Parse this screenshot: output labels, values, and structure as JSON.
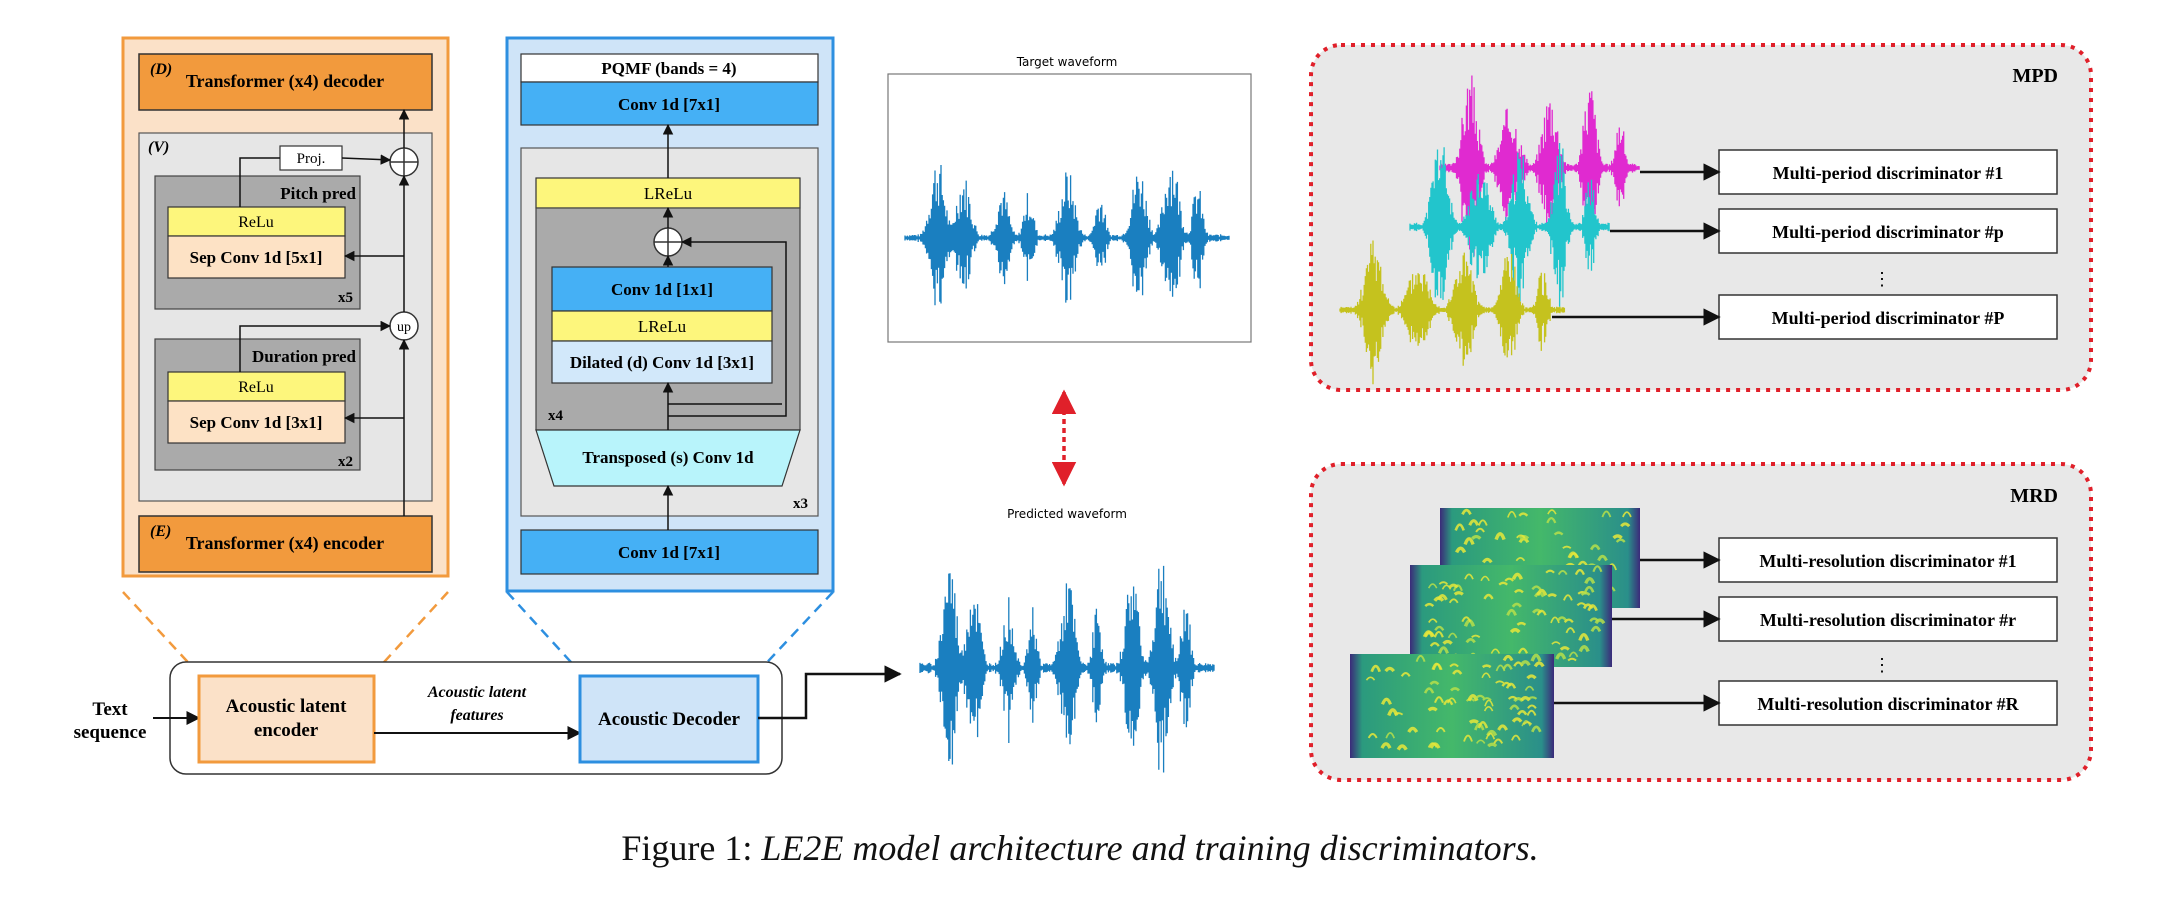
{
  "colors": {
    "orange": "#f29a3d",
    "orange_fill": "#fbe1c8",
    "blue": "#2d8fe0",
    "blue_fill": "#cfe4f8",
    "conv_blue": "#45b0f5",
    "light_blue": "#d2e8fa",
    "cyan": "#b8f4fb",
    "yellow": "#fdf67c",
    "peach": "#fde2c5",
    "gray": "#aaaaaa",
    "panel_gray": "#e8e8e8",
    "red_dotted": "#e0202a",
    "wave_blue": "#1a7fc0",
    "magenta": "#e02ad0",
    "teal": "#22c5cc",
    "olive": "#c5c21e"
  },
  "encoder": {
    "decoder_tag": "(D)",
    "decoder_label": "Transformer (x4) decoder",
    "variance_tag": "(V)",
    "proj_label": "Proj.",
    "pitch_title": "Pitch pred",
    "pitch_relu": "ReLu",
    "pitch_conv": "Sep Conv 1d [5x1]",
    "pitch_repeat": "x5",
    "up_label": "up",
    "duration_title": "Duration pred",
    "duration_relu": "ReLu",
    "duration_conv": "Sep Conv 1d [3x1]",
    "duration_repeat": "x2",
    "encoder_tag": "(E)",
    "encoder_label": "Transformer (x4) encoder"
  },
  "decoder": {
    "pqmf_label": "PQMF (bands = 4)",
    "conv_top_label": "Conv 1d [7x1]",
    "lrelu_top_label": "LReLu",
    "conv1x1_label": "Conv 1d [1x1]",
    "lrelu_inner_label": "LReLu",
    "dilated_label": "Dilated (d) Conv 1d [3x1]",
    "inner_repeat": "x4",
    "transposed_label": "Transposed (s) Conv 1d",
    "outer_repeat": "x3",
    "conv_bottom_label": "Conv 1d [7x1]"
  },
  "pipeline": {
    "input_label_line1": "Text",
    "input_label_line2": "sequence",
    "encoder_line1": "Acoustic latent",
    "encoder_line2": "encoder",
    "features_line1": "Acoustic latent",
    "features_line2": "features",
    "decoder_label": "Acoustic Decoder"
  },
  "waveforms": {
    "target_title": "Target waveform",
    "predicted_title": "Predicted waveform"
  },
  "mpd": {
    "title": "MPD",
    "items": [
      "Multi-period discriminator #1",
      "Multi-period discriminator #p",
      "Multi-period discriminator #P"
    ],
    "ellipsis": "⋮"
  },
  "mrd": {
    "title": "MRD",
    "items": [
      "Multi-resolution discriminator #1",
      "Multi-resolution discriminator #r",
      "Multi-resolution discriminator #R"
    ],
    "ellipsis": "⋮"
  },
  "caption": {
    "prefix": "Figure 1: ",
    "text": "LE2E model architecture and training discriminators."
  }
}
